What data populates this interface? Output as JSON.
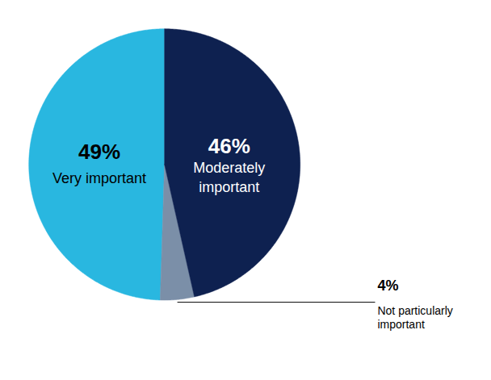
{
  "chart_data": {
    "type": "pie",
    "categories": [
      "Very important",
      "Not particularly\nimportant",
      "Moderately\nimportant"
    ],
    "values": [
      49,
      4,
      46
    ],
    "value_labels": [
      "49%",
      "4%",
      "46%"
    ],
    "colors": [
      "#29B7E0",
      "#7B8FA8",
      "#0E2150"
    ],
    "data_labels": true
  }
}
